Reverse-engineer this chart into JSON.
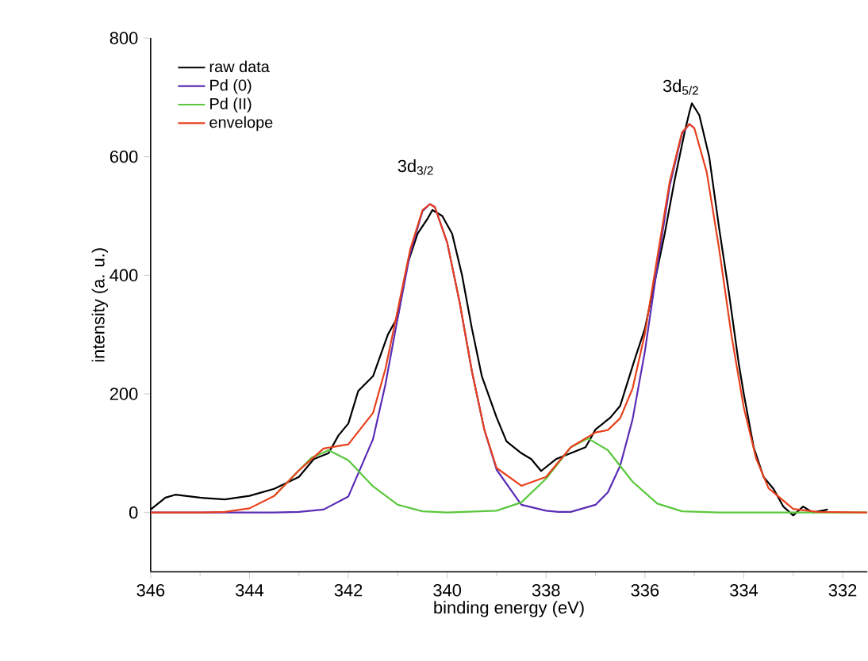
{
  "chart_data": {
    "type": "line",
    "xlabel": "binding energy (eV)",
    "ylabel": "intensity (a. u.)",
    "xlim": [
      346,
      331.5
    ],
    "ylim": [
      -100,
      800
    ],
    "xticks": [
      346,
      344,
      342,
      340,
      338,
      336,
      334,
      332
    ],
    "yticks": [
      0,
      200,
      400,
      600,
      800
    ],
    "grid": false,
    "legend": "top left",
    "annotations": [
      "3d$_{3/2}$",
      "3d$_{5/2}$"
    ],
    "series": [
      {
        "name": "raw data",
        "color": "#000000",
        "x": [
          346,
          345.7,
          345.5,
          345,
          344.5,
          344,
          343.5,
          343,
          342.7,
          342.4,
          342.2,
          342,
          341.8,
          341.5,
          341.2,
          341,
          340.8,
          340.6,
          340.4,
          340.3,
          340.1,
          339.9,
          339.7,
          339.5,
          339.3,
          339,
          338.8,
          338.5,
          338.3,
          338.1,
          337.8,
          337.5,
          337.2,
          337,
          336.7,
          336.5,
          336.2,
          336,
          335.8,
          335.6,
          335.4,
          335.2,
          335.1,
          335.05,
          334.9,
          334.7,
          334.5,
          334.3,
          334.1,
          334,
          333.8,
          333.6,
          333.4,
          333.2,
          333,
          332.8,
          332.6,
          332.3
        ],
        "values": [
          5,
          25,
          30,
          25,
          22,
          28,
          40,
          60,
          90,
          100,
          130,
          150,
          205,
          230,
          300,
          330,
          420,
          470,
          495,
          510,
          500,
          470,
          400,
          310,
          230,
          160,
          120,
          100,
          90,
          70,
          90,
          100,
          110,
          140,
          160,
          180,
          260,
          310,
          390,
          470,
          560,
          640,
          675,
          690,
          670,
          600,
          480,
          370,
          250,
          200,
          110,
          60,
          40,
          10,
          -5,
          10,
          0,
          5
        ]
      },
      {
        "name": "Pd (0)",
        "color": "#5a2db5",
        "x": [
          346,
          343.5,
          343,
          342.5,
          342,
          341.5,
          341.25,
          341,
          340.75,
          340.5,
          340.35,
          340.25,
          340,
          339.75,
          339.5,
          339.25,
          339,
          338.5,
          338,
          337.75,
          337.5,
          337,
          336.75,
          336.5,
          336.25,
          336,
          335.75,
          335.5,
          335.25,
          335.1,
          335
        ],
        "values": [
          0,
          0,
          1,
          5,
          27,
          124,
          216,
          329,
          437,
          508,
          520,
          515,
          455,
          355,
          238,
          140,
          72,
          13,
          3,
          1,
          1,
          13,
          34,
          79,
          157,
          272,
          415,
          550,
          639,
          655,
          648
        ]
      },
      {
        "name": "Pd (II)",
        "color": "#5ac83c",
        "x": [
          343.5,
          343,
          342.75,
          342.4,
          342,
          341.5,
          341,
          340.5,
          340,
          339,
          338.5,
          338,
          337.5,
          337.15,
          336.75,
          336.25,
          335.75,
          335.25,
          334.5,
          331.5
        ],
        "values": [
          28,
          71,
          92,
          105,
          88,
          44,
          13,
          2,
          0,
          3,
          17,
          57,
          110,
          125,
          105,
          52,
          15,
          2,
          0,
          0
        ]
      },
      {
        "name": "envelope",
        "color": "#e8401c",
        "x": [
          346,
          345,
          344.5,
          344,
          343.5,
          343,
          342.5,
          342,
          341.5,
          341.25,
          341,
          340.75,
          340.5,
          340.35,
          340.25,
          340,
          339.75,
          339.5,
          339.25,
          339,
          338.5,
          338,
          337.5,
          337,
          336.75,
          336.5,
          336.25,
          336,
          335.75,
          335.5,
          335.25,
          335.1,
          335,
          334.75,
          334.5,
          334.25,
          334,
          333.75,
          333.5,
          333,
          332.5,
          331.5
        ],
        "values": [
          0,
          0,
          1,
          7,
          28,
          71,
          108,
          115,
          168,
          242,
          342,
          443,
          510,
          520,
          515,
          455,
          355,
          238,
          140,
          75,
          45,
          60,
          110,
          135,
          139,
          159,
          209,
          302,
          430,
          557,
          641,
          655,
          648,
          574,
          445,
          299,
          177,
          91,
          41,
          6,
          1,
          0
        ]
      }
    ]
  }
}
